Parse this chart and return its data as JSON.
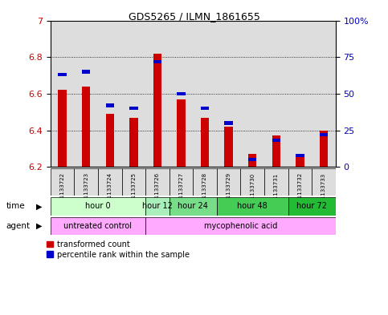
{
  "title": "GDS5265 / ILMN_1861655",
  "samples": [
    "GSM1133722",
    "GSM1133723",
    "GSM1133724",
    "GSM1133725",
    "GSM1133726",
    "GSM1133727",
    "GSM1133728",
    "GSM1133729",
    "GSM1133730",
    "GSM1133731",
    "GSM1133732",
    "GSM1133733"
  ],
  "transformed_count": [
    6.62,
    6.64,
    6.49,
    6.47,
    6.82,
    6.57,
    6.47,
    6.42,
    6.27,
    6.37,
    6.27,
    6.4
  ],
  "percentile_rank": [
    63,
    65,
    42,
    40,
    72,
    50,
    40,
    30,
    5,
    18,
    8,
    22
  ],
  "ymin": 6.2,
  "ymax": 7.0,
  "yticks_left": [
    6.2,
    6.4,
    6.6,
    6.8,
    7.0
  ],
  "yticks_right": [
    0,
    25,
    50,
    75,
    100
  ],
  "ytick_right_labels": [
    "0",
    "25",
    "50",
    "75",
    "100%"
  ],
  "bar_color_red": "#cc0000",
  "bar_color_blue": "#0000cc",
  "bar_width": 0.35,
  "blue_bar_width": 0.35,
  "blue_bar_height": 0.018,
  "time_groups": [
    {
      "label": "hour 0",
      "start": 0,
      "end": 3,
      "color": "#ccffcc"
    },
    {
      "label": "hour 12",
      "start": 4,
      "end": 4,
      "color": "#aaeebb"
    },
    {
      "label": "hour 24",
      "start": 5,
      "end": 6,
      "color": "#77dd88"
    },
    {
      "label": "hour 48",
      "start": 7,
      "end": 9,
      "color": "#44cc55"
    },
    {
      "label": "hour 72",
      "start": 10,
      "end": 11,
      "color": "#22bb33"
    }
  ],
  "agent_groups": [
    {
      "label": "untreated control",
      "start": 0,
      "end": 3,
      "color": "#ffaaff"
    },
    {
      "label": "mycophenolic acid",
      "start": 4,
      "end": 11,
      "color": "#ffaaff"
    }
  ],
  "legend_red": "transformed count",
  "legend_blue": "percentile rank within the sample",
  "bg_color": "#ffffff",
  "plot_bg_color": "#ffffff",
  "cell_bg_color": "#dddddd",
  "tick_color_left": "#cc0000",
  "tick_color_right": "#0000cc"
}
